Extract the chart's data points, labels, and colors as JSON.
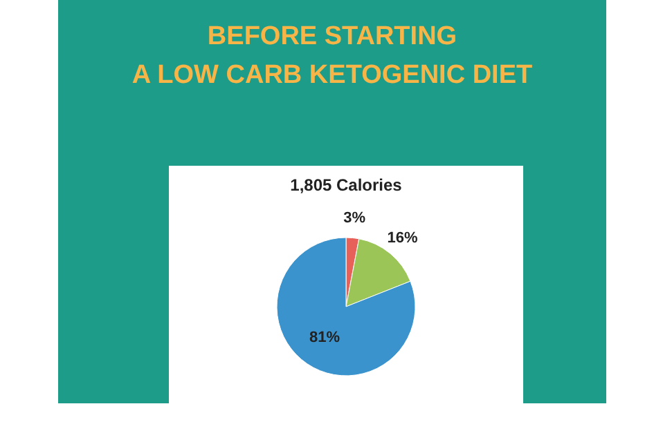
{
  "chart_data": {
    "type": "pie",
    "title": "BEFORE STARTING\nA LOW CARB KETOGENIC DIET",
    "subtitle": "1,805 Calories",
    "categories": [
      null,
      null,
      null
    ],
    "values": [
      3,
      16,
      81
    ],
    "colors": [
      "#e8605a",
      "#9bc657",
      "#3a93cc"
    ],
    "value_labels": [
      "3%",
      "16%",
      "81%"
    ]
  }
}
